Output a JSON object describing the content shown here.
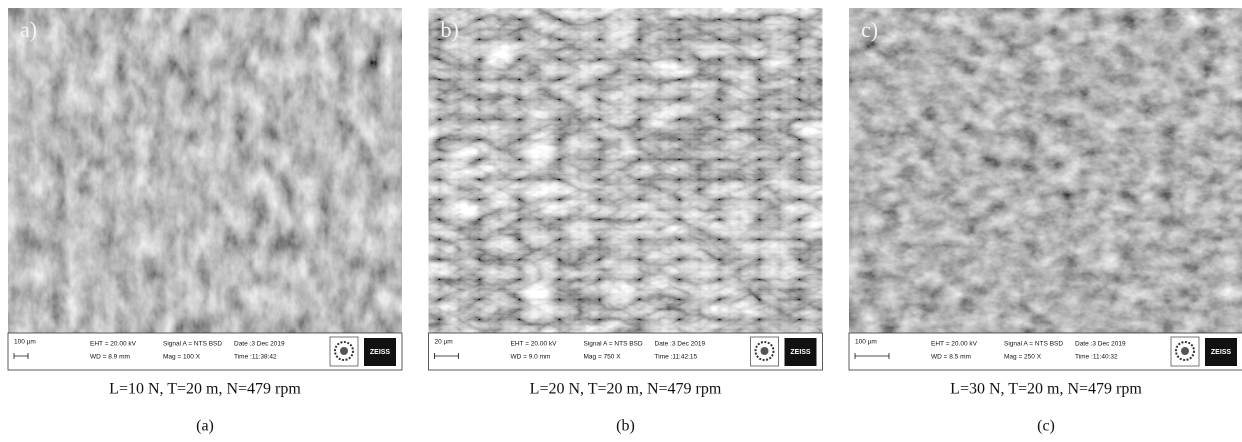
{
  "panels": [
    {
      "overlay": "a)",
      "scale": "100 µm",
      "eht": "EHT = 20.00 kV",
      "wd": "WD = 8.9 mm",
      "signal": "Signal A = NTS BSD",
      "mag": "Mag =  100 X",
      "date": "Date :3 Dec 2019",
      "time": "Time :11:38:42",
      "logo": "ZEISS",
      "caption": "L=10 N, T=20 m, N=479 rpm",
      "sublabel": "(a)"
    },
    {
      "overlay": "b)",
      "scale": "20 µm",
      "eht": "EHT = 20.00 kV",
      "wd": "WD =  9.0 mm",
      "signal": "Signal A = NTS BSD",
      "mag": "Mag =  750 X",
      "date": "Date :3 Dec 2019",
      "time": "Time :11:42:15",
      "logo": "ZEISS",
      "caption": "L=20 N, T=20 m, N=479 rpm",
      "sublabel": "(b)"
    },
    {
      "overlay": "c)",
      "scale": "100 µm",
      "eht": "EHT = 20.00 kV",
      "wd": "WD =  8.5 mm",
      "signal": "Signal A = NTS BSD",
      "mag": "Mag =  250 X",
      "date": "Date :3 Dec 2019",
      "time": "Time :11:40:32",
      "logo": "ZEISS",
      "caption": "L=30 N, T=20 m, N=479 rpm",
      "sublabel": "(c)"
    }
  ]
}
